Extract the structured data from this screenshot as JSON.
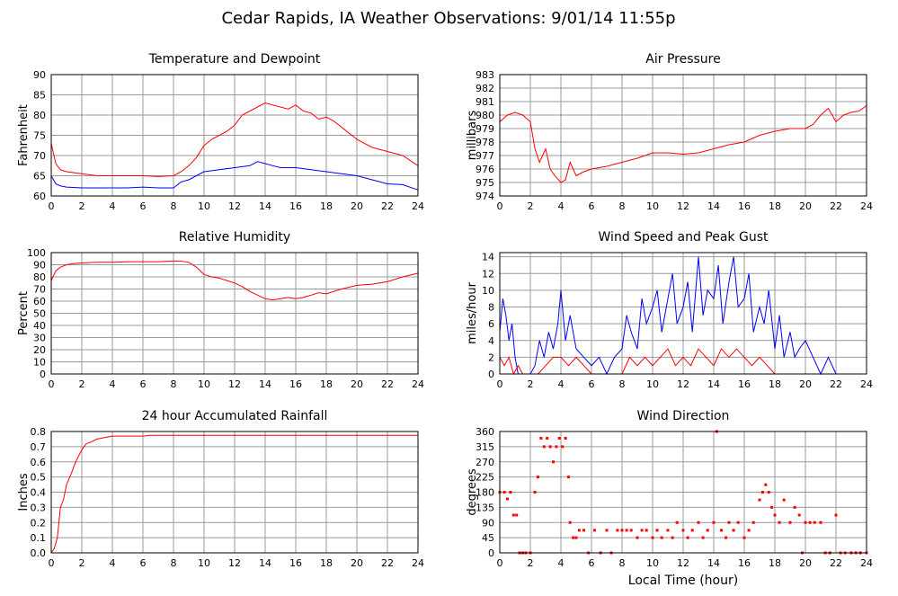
{
  "page_title": "Cedar Rapids, IA Weather Observations: 9/01/14 11:55p",
  "footer_xlabel": "Local Time (hour)",
  "colors": {
    "red": "#ff0000",
    "blue": "#0000ff",
    "grid": "#999999",
    "axis": "#000000"
  },
  "chart_data": [
    {
      "id": "temp",
      "type": "line",
      "title": "Temperature and Dewpoint",
      "ylabel": "Fahrenheit",
      "xlim": [
        0,
        24
      ],
      "ylim": [
        60,
        90
      ],
      "xticks": [
        "0",
        "2",
        "4",
        "6",
        "8",
        "10",
        "12",
        "14",
        "16",
        "18",
        "20",
        "22",
        "24"
      ],
      "yticks": [
        "60",
        "65",
        "70",
        "75",
        "80",
        "85",
        "90"
      ],
      "grid": true,
      "series": [
        {
          "color": "#ff0000",
          "x": [
            0,
            0.3,
            0.6,
            1,
            2,
            3,
            4,
            5,
            6,
            7,
            8,
            8.5,
            9,
            9.5,
            10,
            10.5,
            11,
            11.5,
            12,
            12.5,
            13,
            13.5,
            14,
            14.5,
            15,
            15.5,
            16,
            16.5,
            17,
            17.5,
            18,
            18.5,
            19,
            19.5,
            20,
            21,
            22,
            23,
            24
          ],
          "y": [
            73,
            68,
            66.5,
            66,
            65.5,
            65,
            65,
            65,
            65,
            64.8,
            65,
            66,
            67.5,
            69.5,
            72.5,
            74,
            75,
            76,
            77.5,
            80,
            81,
            82,
            83,
            82.5,
            82,
            81.5,
            82.5,
            81,
            80.5,
            79,
            79.5,
            78.5,
            77,
            75.5,
            74,
            72,
            71,
            70,
            67.5
          ]
        },
        {
          "color": "#0000ff",
          "x": [
            0,
            0.3,
            0.6,
            1,
            2,
            3,
            4,
            5,
            6,
            7,
            8,
            8.5,
            9,
            9.5,
            10,
            11,
            12,
            13,
            13.5,
            14,
            14.5,
            15,
            16,
            17,
            18,
            19,
            20,
            21,
            22,
            23,
            24
          ],
          "y": [
            65,
            63,
            62.5,
            62.2,
            62,
            62,
            62,
            62,
            62.2,
            62,
            62,
            63.5,
            64,
            65,
            66,
            66.5,
            67,
            67.5,
            68.5,
            68,
            67.5,
            67,
            67,
            66.5,
            66,
            65.5,
            65,
            64,
            63,
            62.8,
            61.5
          ]
        }
      ]
    },
    {
      "id": "pressure",
      "type": "line",
      "title": "Air Pressure",
      "ylabel": "millibars",
      "xlim": [
        0,
        24
      ],
      "ylim": [
        974,
        983
      ],
      "xticks": [
        "0",
        "2",
        "4",
        "6",
        "8",
        "10",
        "12",
        "14",
        "16",
        "18",
        "20",
        "22",
        "24"
      ],
      "yticks": [
        "974",
        "975",
        "976",
        "977",
        "978",
        "979",
        "980",
        "981",
        "982",
        "983"
      ],
      "grid": true,
      "series": [
        {
          "color": "#ff0000",
          "x": [
            0,
            0.5,
            1,
            1.5,
            2,
            2.3,
            2.6,
            3,
            3.3,
            3.6,
            4,
            4.3,
            4.6,
            5,
            5.5,
            6,
            7,
            8,
            9,
            10,
            11,
            12,
            13,
            14,
            15,
            16,
            17,
            18,
            19,
            20,
            20.5,
            21,
            21.5,
            22,
            22.5,
            23,
            23.5,
            24
          ],
          "y": [
            979.5,
            980,
            980.2,
            980,
            979.5,
            977.5,
            976.5,
            977.5,
            976,
            975.5,
            975,
            975.2,
            976.5,
            975.5,
            975.8,
            976,
            976.2,
            976.5,
            976.8,
            977.2,
            977.2,
            977.1,
            977.2,
            977.5,
            977.8,
            978,
            978.5,
            978.8,
            979,
            979,
            979.3,
            980,
            980.5,
            979.5,
            980,
            980.2,
            980.3,
            980.7
          ]
        }
      ]
    },
    {
      "id": "humidity",
      "type": "line",
      "title": "Relative Humidity",
      "ylabel": "Percent",
      "xlim": [
        0,
        24
      ],
      "ylim": [
        0,
        100
      ],
      "xticks": [
        "0",
        "2",
        "4",
        "6",
        "8",
        "10",
        "12",
        "14",
        "16",
        "18",
        "20",
        "22",
        "24"
      ],
      "yticks": [
        "0",
        "10",
        "20",
        "30",
        "40",
        "50",
        "60",
        "70",
        "80",
        "90",
        "100"
      ],
      "grid": true,
      "series": [
        {
          "color": "#ff0000",
          "x": [
            0,
            0.3,
            0.6,
            1,
            1.5,
            2,
            3,
            4,
            5,
            6,
            7,
            8,
            8.5,
            9,
            9.5,
            10,
            10.5,
            11,
            11.5,
            12,
            12.5,
            13,
            13.5,
            14,
            14.5,
            15,
            15.5,
            16,
            16.5,
            17,
            17.5,
            18,
            19,
            20,
            21,
            22,
            23,
            24
          ],
          "y": [
            77,
            85,
            88,
            90,
            91,
            91.5,
            92,
            92,
            92.5,
            92.5,
            92.5,
            93,
            93,
            92,
            88,
            82,
            80,
            79,
            77,
            75,
            72,
            68,
            65,
            62,
            61,
            62,
            63,
            62,
            63,
            65,
            67,
            66,
            70,
            73,
            74,
            76,
            80,
            83
          ]
        }
      ]
    },
    {
      "id": "wind",
      "type": "line",
      "title": "Wind Speed and Peak Gust",
      "ylabel": "miles/hour",
      "xlim": [
        0,
        24
      ],
      "ylim": [
        0,
        14.5
      ],
      "xticks": [
        "0",
        "2",
        "4",
        "6",
        "8",
        "10",
        "12",
        "14",
        "16",
        "18",
        "20",
        "22",
        "24"
      ],
      "yticks": [
        "0",
        "2",
        "4",
        "6",
        "8",
        "10",
        "12",
        "14"
      ],
      "grid": true,
      "series": [
        {
          "color": "#0000ff",
          "x": [
            0,
            0.2,
            0.4,
            0.6,
            0.8,
            1,
            1.2,
            1.5,
            2,
            2.3,
            2.6,
            2.9,
            3.2,
            3.5,
            3.8,
            4,
            4.3,
            4.6,
            5,
            5.5,
            6,
            6.5,
            7,
            7.5,
            8,
            8.3,
            8.6,
            9,
            9.3,
            9.6,
            10,
            10.3,
            10.6,
            11,
            11.3,
            11.6,
            12,
            12.3,
            12.6,
            13,
            13.3,
            13.6,
            14,
            14.3,
            14.6,
            15,
            15.3,
            15.6,
            16,
            16.3,
            16.6,
            17,
            17.3,
            17.6,
            18,
            18.3,
            18.6,
            19,
            19.3,
            19.6,
            20,
            20.5,
            21,
            21.5,
            22,
            22.5,
            23,
            24
          ],
          "y": [
            5,
            9,
            7,
            4,
            6,
            2,
            0,
            0,
            0,
            1,
            4,
            2,
            5,
            3,
            6,
            10,
            4,
            7,
            3,
            2,
            1,
            2,
            0,
            2,
            3,
            7,
            5,
            3,
            9,
            6,
            8,
            10,
            5,
            9,
            12,
            6,
            8,
            11,
            5,
            14,
            7,
            10,
            9,
            13,
            6,
            11,
            14,
            8,
            9,
            12,
            5,
            8,
            6,
            10,
            3,
            7,
            2,
            5,
            2,
            3,
            4,
            2,
            0,
            2,
            0,
            0,
            0,
            0
          ]
        },
        {
          "color": "#ff0000",
          "x": [
            0,
            0.3,
            0.6,
            0.9,
            1.2,
            1.5,
            2,
            2.5,
            3,
            3.5,
            4,
            4.5,
            5,
            5.5,
            6,
            7,
            8,
            8.5,
            9,
            9.5,
            10,
            10.5,
            11,
            11.5,
            12,
            12.5,
            13,
            13.5,
            14,
            14.5,
            15,
            15.5,
            16,
            16.5,
            17,
            17.5,
            18,
            19,
            20,
            21,
            22,
            24
          ],
          "y": [
            2,
            1,
            2,
            0,
            1,
            0,
            0,
            0,
            1,
            2,
            2,
            1,
            2,
            1,
            0,
            0,
            0,
            2,
            1,
            2,
            1,
            2,
            3,
            1,
            2,
            1,
            3,
            2,
            1,
            3,
            2,
            3,
            2,
            1,
            2,
            1,
            0,
            0,
            0,
            0,
            0,
            0
          ]
        }
      ]
    },
    {
      "id": "rain",
      "type": "line",
      "title": "24 hour Accumulated Rainfall",
      "ylabel": "Inches",
      "xlim": [
        0,
        24
      ],
      "ylim": [
        0,
        0.8
      ],
      "xticks": [
        "0",
        "2",
        "4",
        "6",
        "8",
        "10",
        "12",
        "14",
        "16",
        "18",
        "20",
        "22",
        "24"
      ],
      "yticks": [
        "0.0",
        "0.1",
        "0.2",
        "0.3",
        "0.4",
        "0.5",
        "0.6",
        "0.7",
        "0.8"
      ],
      "grid": true,
      "series": [
        {
          "color": "#ff0000",
          "x": [
            0,
            0.2,
            0.4,
            0.5,
            0.6,
            0.8,
            1,
            1.3,
            1.6,
            2,
            2.3,
            2.6,
            3,
            3.5,
            4,
            5,
            6,
            6.5,
            8,
            10,
            12,
            14,
            16,
            18,
            20,
            22,
            24
          ],
          "y": [
            0,
            0.03,
            0.1,
            0.2,
            0.3,
            0.35,
            0.45,
            0.52,
            0.6,
            0.68,
            0.72,
            0.73,
            0.75,
            0.76,
            0.77,
            0.77,
            0.77,
            0.775,
            0.775,
            0.775,
            0.775,
            0.775,
            0.775,
            0.775,
            0.775,
            0.775,
            0.775
          ]
        }
      ]
    },
    {
      "id": "direction",
      "type": "scatter",
      "title": "Wind Direction",
      "ylabel": "degrees",
      "xlabel": "Local Time (hour)",
      "xlim": [
        0,
        24
      ],
      "ylim": [
        0,
        360
      ],
      "xticks": [
        "0",
        "2",
        "4",
        "6",
        "8",
        "10",
        "12",
        "14",
        "16",
        "18",
        "20",
        "22",
        "24"
      ],
      "yticks": [
        "0",
        "45",
        "90",
        "135",
        "180",
        "225",
        "270",
        "315",
        "360"
      ],
      "grid": true,
      "series": [
        {
          "color": "#ff0000",
          "x": [
            0,
            0.3,
            0.5,
            0.7,
            0.9,
            1.1,
            1.3,
            1.5,
            1.7,
            2,
            2.3,
            2.5,
            2.7,
            2.9,
            3.1,
            3.3,
            3.5,
            3.7,
            3.9,
            4.1,
            4.3,
            4.5,
            4.6,
            4.8,
            5,
            5.2,
            5.5,
            5.8,
            6.2,
            6.6,
            7,
            7.3,
            7.7,
            8,
            8.3,
            8.6,
            9,
            9.3,
            9.6,
            10,
            10.3,
            10.6,
            11,
            11.3,
            11.6,
            12,
            12.3,
            12.6,
            13,
            13.3,
            13.6,
            14,
            14.2,
            14.5,
            14.8,
            15,
            15.3,
            15.6,
            16,
            16.3,
            16.6,
            17,
            17.2,
            17.4,
            17.6,
            17.8,
            18,
            18.3,
            18.6,
            19,
            19.3,
            19.6,
            19.8,
            20,
            20.3,
            20.6,
            21,
            21.3,
            21.6,
            22,
            22.3,
            22.6,
            23,
            23.3,
            23.6,
            24
          ],
          "y": [
            180,
            180,
            160,
            180,
            112,
            112,
            0,
            0,
            0,
            0,
            180,
            225,
            340,
            315,
            340,
            315,
            270,
            315,
            340,
            315,
            340,
            225,
            90,
            45,
            45,
            67,
            67,
            0,
            67,
            0,
            67,
            0,
            67,
            67,
            67,
            67,
            45,
            67,
            67,
            45,
            67,
            45,
            67,
            45,
            90,
            67,
            45,
            67,
            90,
            45,
            67,
            90,
            360,
            67,
            45,
            90,
            67,
            90,
            45,
            67,
            90,
            157,
            180,
            202,
            180,
            135,
            112,
            90,
            157,
            90,
            135,
            112,
            0,
            90,
            90,
            90,
            90,
            0,
            0,
            112,
            0,
            0,
            0,
            0,
            0,
            0
          ]
        }
      ]
    }
  ]
}
